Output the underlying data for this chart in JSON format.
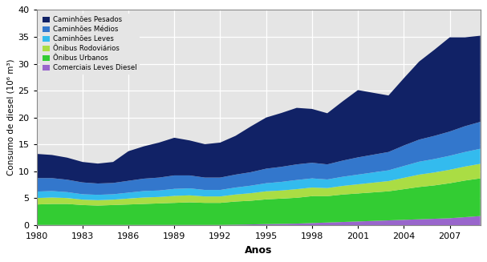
{
  "years": [
    1980,
    1981,
    1982,
    1983,
    1984,
    1985,
    1986,
    1987,
    1988,
    1989,
    1990,
    1991,
    1992,
    1993,
    1994,
    1995,
    1996,
    1997,
    1998,
    1999,
    2000,
    2001,
    2002,
    2003,
    2004,
    2005,
    2006,
    2007,
    2008,
    2009
  ],
  "series": {
    "Comerciais Leves Diesel": [
      0.05,
      0.05,
      0.05,
      0.05,
      0.05,
      0.05,
      0.05,
      0.05,
      0.05,
      0.05,
      0.05,
      0.05,
      0.05,
      0.1,
      0.15,
      0.2,
      0.25,
      0.3,
      0.4,
      0.5,
      0.6,
      0.7,
      0.8,
      0.9,
      1.0,
      1.1,
      1.2,
      1.3,
      1.5,
      1.7
    ],
    "Ônibus Urbanos": [
      3.8,
      3.9,
      3.9,
      3.7,
      3.6,
      3.7,
      3.8,
      3.9,
      4.0,
      4.1,
      4.2,
      4.1,
      4.1,
      4.3,
      4.4,
      4.6,
      4.7,
      4.8,
      5.0,
      4.9,
      5.1,
      5.2,
      5.3,
      5.4,
      5.7,
      6.0,
      6.2,
      6.5,
      6.8,
      7.0
    ],
    "Ônibus Rodoviários": [
      1.2,
      1.2,
      1.1,
      1.0,
      1.0,
      1.0,
      1.1,
      1.2,
      1.2,
      1.3,
      1.3,
      1.2,
      1.2,
      1.3,
      1.4,
      1.5,
      1.5,
      1.6,
      1.6,
      1.5,
      1.6,
      1.7,
      1.8,
      1.9,
      2.1,
      2.3,
      2.4,
      2.5,
      2.6,
      2.7
    ],
    "Caminhões Leves": [
      1.2,
      1.2,
      1.1,
      1.0,
      1.0,
      1.0,
      1.1,
      1.2,
      1.2,
      1.3,
      1.3,
      1.2,
      1.2,
      1.3,
      1.4,
      1.5,
      1.6,
      1.7,
      1.7,
      1.6,
      1.7,
      1.8,
      1.9,
      2.0,
      2.2,
      2.4,
      2.5,
      2.6,
      2.7,
      2.8
    ],
    "Caminhões Médios": [
      2.5,
      2.4,
      2.3,
      2.2,
      2.1,
      2.1,
      2.2,
      2.3,
      2.4,
      2.5,
      2.4,
      2.3,
      2.3,
      2.4,
      2.5,
      2.7,
      2.8,
      2.9,
      2.9,
      2.8,
      3.0,
      3.2,
      3.3,
      3.4,
      3.8,
      4.1,
      4.3,
      4.5,
      4.8,
      5.0
    ],
    "Caminhões Pesados": [
      4.5,
      4.3,
      4.1,
      3.8,
      3.7,
      3.9,
      5.5,
      6.0,
      6.5,
      7.0,
      6.5,
      6.2,
      6.5,
      7.2,
      8.5,
      9.5,
      10.0,
      10.5,
      10.0,
      9.5,
      11.0,
      12.5,
      11.5,
      10.5,
      12.5,
      14.5,
      16.0,
      17.5,
      16.5,
      16.0
    ]
  },
  "colors": {
    "Comerciais Leves Diesel": "#9966cc",
    "Ônibus Urbanos": "#33cc33",
    "Ônibus Rodoviários": "#aadd44",
    "Caminhões Leves": "#33bbee",
    "Caminhões Médios": "#3377cc",
    "Caminhões Pesados": "#112266"
  },
  "ylabel": "Consumo de diesel (10⁶ m³)",
  "xlabel": "Anos",
  "ylim": [
    0,
    40
  ],
  "yticks": [
    0,
    5,
    10,
    15,
    20,
    25,
    30,
    35,
    40
  ],
  "xticks": [
    1980,
    1983,
    1986,
    1989,
    1992,
    1995,
    1998,
    2001,
    2004,
    2007
  ],
  "bg_color": "#e5e5e5",
  "legend_order": [
    "Caminhões Pesados",
    "Caminhões Médios",
    "Caminhões Leves",
    "Ônibus Rodoviários",
    "Ônibus Urbanos",
    "Comerciais Leves Diesel"
  ]
}
